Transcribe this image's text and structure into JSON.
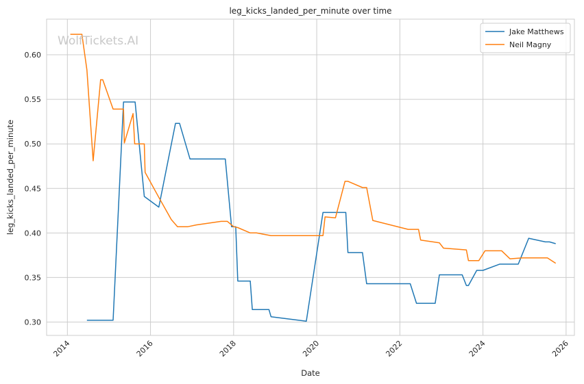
{
  "chart_data": {
    "type": "line",
    "title": "leg_kicks_landed_per_minute over time",
    "xlabel": "Date",
    "ylabel": "leg_kicks_landed_per_minute",
    "watermark": "WolfTickets.AI",
    "xlim": [
      2013.5,
      2026.2
    ],
    "ylim": [
      0.285,
      0.64
    ],
    "x_ticks": [
      2014,
      2016,
      2018,
      2020,
      2022,
      2024,
      2026
    ],
    "x_tick_labels": [
      "2014",
      "2016",
      "2018",
      "2020",
      "2022",
      "2024",
      "2026"
    ],
    "y_ticks": [
      0.3,
      0.35,
      0.4,
      0.45,
      0.5,
      0.55,
      0.6
    ],
    "y_tick_labels": [
      "0.30",
      "0.35",
      "0.40",
      "0.45",
      "0.50",
      "0.55",
      "0.60"
    ],
    "grid": true,
    "legend_position": "top-right",
    "series": [
      {
        "name": "Jake Matthews",
        "color": "#1f77b4",
        "points": [
          [
            2014.47,
            0.302
          ],
          [
            2015.1,
            0.302
          ],
          [
            2015.35,
            0.547
          ],
          [
            2015.63,
            0.547
          ],
          [
            2015.85,
            0.441
          ],
          [
            2016.2,
            0.429
          ],
          [
            2016.6,
            0.523
          ],
          [
            2016.7,
            0.523
          ],
          [
            2016.95,
            0.483
          ],
          [
            2017.8,
            0.483
          ],
          [
            2017.95,
            0.407
          ],
          [
            2018.05,
            0.407
          ],
          [
            2018.1,
            0.346
          ],
          [
            2018.4,
            0.346
          ],
          [
            2018.45,
            0.314
          ],
          [
            2018.85,
            0.314
          ],
          [
            2018.9,
            0.306
          ],
          [
            2019.75,
            0.301
          ],
          [
            2020.15,
            0.423
          ],
          [
            2020.7,
            0.423
          ],
          [
            2020.75,
            0.378
          ],
          [
            2021.1,
            0.378
          ],
          [
            2021.2,
            0.343
          ],
          [
            2022.25,
            0.343
          ],
          [
            2022.4,
            0.321
          ],
          [
            2022.85,
            0.321
          ],
          [
            2022.95,
            0.353
          ],
          [
            2023.5,
            0.353
          ],
          [
            2023.6,
            0.341
          ],
          [
            2023.65,
            0.341
          ],
          [
            2023.85,
            0.358
          ],
          [
            2024.0,
            0.358
          ],
          [
            2024.4,
            0.365
          ],
          [
            2024.85,
            0.365
          ],
          [
            2025.1,
            0.394
          ],
          [
            2025.5,
            0.39
          ],
          [
            2025.6,
            0.39
          ],
          [
            2025.75,
            0.388
          ]
        ]
      },
      {
        "name": "Neil Magny",
        "color": "#ff7f0e",
        "points": [
          [
            2014.07,
            0.623
          ],
          [
            2014.35,
            0.623
          ],
          [
            2014.47,
            0.583
          ],
          [
            2014.62,
            0.481
          ],
          [
            2014.8,
            0.572
          ],
          [
            2014.85,
            0.572
          ],
          [
            2015.1,
            0.539
          ],
          [
            2015.35,
            0.539
          ],
          [
            2015.37,
            0.501
          ],
          [
            2015.58,
            0.534
          ],
          [
            2015.62,
            0.5
          ],
          [
            2015.85,
            0.5
          ],
          [
            2015.87,
            0.468
          ],
          [
            2016.2,
            0.44
          ],
          [
            2016.5,
            0.415
          ],
          [
            2016.65,
            0.407
          ],
          [
            2016.9,
            0.407
          ],
          [
            2017.1,
            0.409
          ],
          [
            2017.4,
            0.411
          ],
          [
            2017.7,
            0.413
          ],
          [
            2017.85,
            0.413
          ],
          [
            2018.0,
            0.407
          ],
          [
            2018.1,
            0.406
          ],
          [
            2018.4,
            0.4
          ],
          [
            2018.55,
            0.4
          ],
          [
            2018.9,
            0.397
          ],
          [
            2020.15,
            0.397
          ],
          [
            2020.2,
            0.418
          ],
          [
            2020.45,
            0.417
          ],
          [
            2020.68,
            0.458
          ],
          [
            2020.75,
            0.458
          ],
          [
            2021.1,
            0.451
          ],
          [
            2021.2,
            0.451
          ],
          [
            2021.35,
            0.414
          ],
          [
            2022.2,
            0.404
          ],
          [
            2022.45,
            0.404
          ],
          [
            2022.5,
            0.392
          ],
          [
            2022.95,
            0.389
          ],
          [
            2023.05,
            0.383
          ],
          [
            2023.6,
            0.381
          ],
          [
            2023.65,
            0.369
          ],
          [
            2023.9,
            0.369
          ],
          [
            2024.05,
            0.38
          ],
          [
            2024.45,
            0.38
          ],
          [
            2024.65,
            0.371
          ],
          [
            2024.95,
            0.372
          ],
          [
            2025.55,
            0.372
          ],
          [
            2025.75,
            0.366
          ]
        ]
      }
    ]
  }
}
